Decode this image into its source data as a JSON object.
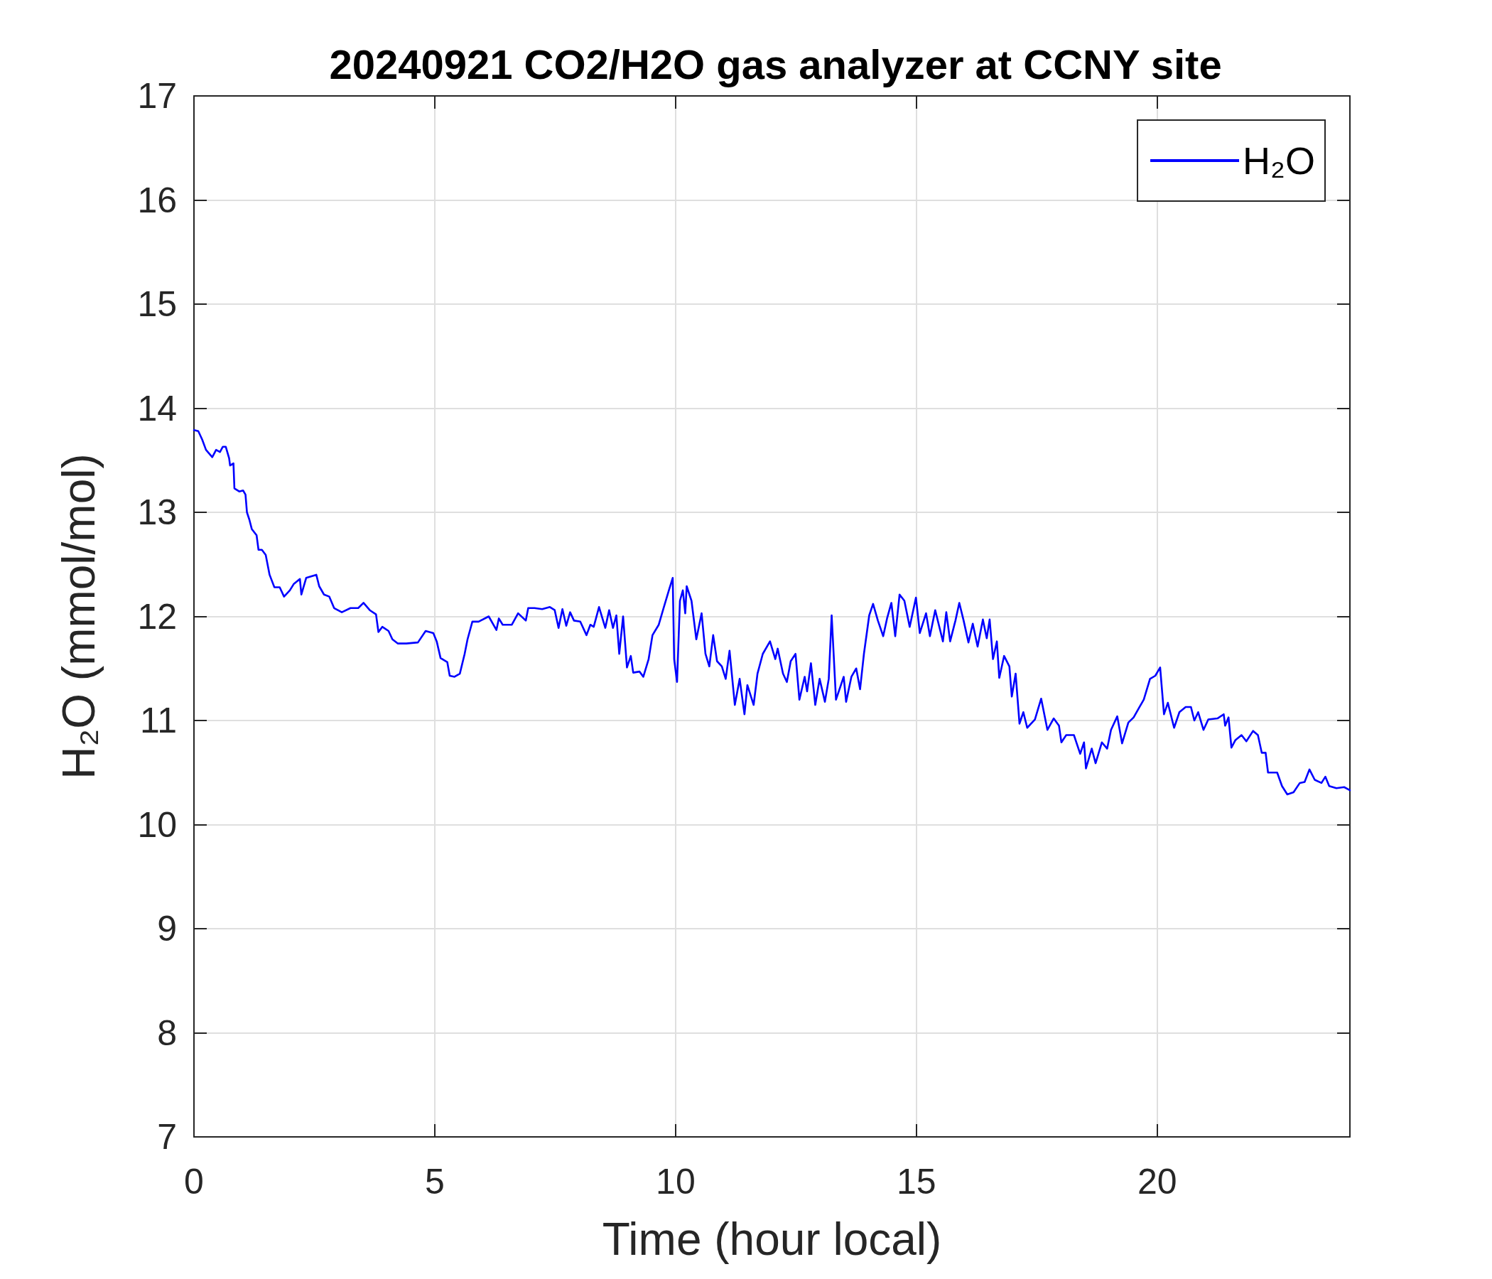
{
  "chart_data": {
    "type": "line",
    "title": "20240921 CO2/H2O gas analyzer at CCNY site",
    "xlabel": "Time (hour local)",
    "ylabel": "H₂O (mmol/mol)",
    "x": [
      0,
      0.09,
      0.17,
      0.25,
      0.38,
      0.46,
      0.54,
      0.6,
      0.66,
      0.73,
      0.75,
      0.82,
      0.84,
      0.94,
      1.02,
      1.07,
      1.1,
      1.15,
      1.2,
      1.3,
      1.34,
      1.41,
      1.49,
      1.57,
      1.67,
      1.78,
      1.87,
      1.99,
      2.07,
      2.2,
      2.23,
      2.33,
      2.54,
      2.6,
      2.7,
      2.81,
      2.91,
      3.07,
      3.25,
      3.41,
      3.52,
      3.65,
      3.78,
      3.83,
      3.91,
      4.04,
      4.12,
      4.23,
      4.41,
      4.65,
      4.81,
      4.97,
      5.04,
      5.12,
      5.26,
      5.31,
      5.41,
      5.52,
      5.62,
      5.68,
      5.78,
      5.91,
      6.12,
      6.28,
      6.33,
      6.41,
      6.6,
      6.73,
      6.89,
      6.94,
      7.07,
      7.23,
      7.39,
      7.49,
      7.57,
      7.65,
      7.73,
      7.81,
      7.89,
      8.02,
      8.15,
      8.23,
      8.3,
      8.41,
      8.54,
      8.62,
      8.7,
      8.77,
      8.83,
      8.91,
      8.99,
      9.07,
      9.12,
      9.25,
      9.33,
      9.44,
      9.52,
      9.65,
      9.75,
      9.86,
      9.94,
      9.97,
      10.03,
      10.09,
      10.15,
      10.2,
      10.23,
      10.33,
      10.43,
      10.54,
      10.62,
      10.7,
      10.78,
      10.86,
      10.96,
      11.04,
      11.12,
      11.23,
      11.33,
      11.43,
      11.49,
      11.62,
      11.7,
      11.81,
      11.96,
      12.07,
      12.12,
      12.23,
      12.31,
      12.39,
      12.49,
      12.57,
      12.68,
      12.73,
      12.81,
      12.9,
      12.99,
      13.1,
      13.18,
      13.24,
      13.33,
      13.49,
      13.54,
      13.65,
      13.75,
      13.83,
      13.91,
      14.02,
      14.1,
      14.2,
      14.31,
      14.39,
      14.48,
      14.56,
      14.65,
      14.75,
      14.86,
      14.99,
      15.07,
      15.2,
      15.28,
      15.39,
      15.55,
      15.62,
      15.7,
      15.81,
      15.89,
      15.98,
      16.08,
      16.17,
      16.27,
      16.38,
      16.46,
      16.52,
      16.59,
      16.67,
      16.72,
      16.82,
      16.93,
      16.98,
      17.06,
      17.14,
      17.22,
      17.3,
      17.46,
      17.59,
      17.72,
      17.85,
      17.96,
      18.01,
      18.11,
      18.27,
      18.4,
      18.48,
      18.52,
      18.64,
      18.72,
      18.85,
      18.96,
      19.04,
      19.17,
      19.27,
      19.4,
      19.51,
      19.62,
      19.72,
      19.85,
      19.96,
      20.06,
      20.14,
      20.22,
      20.35,
      20.46,
      20.59,
      20.7,
      20.77,
      20.85,
      20.96,
      21.06,
      21.25,
      21.38,
      21.41,
      21.48,
      21.54,
      21.62,
      21.75,
      21.85,
      21.99,
      22.09,
      22.17,
      22.25,
      22.3,
      22.49,
      22.59,
      22.7,
      22.83,
      22.96,
      23.06,
      23.16,
      23.27,
      23.41,
      23.49,
      23.57,
      23.72,
      23.88,
      24
    ],
    "series": [
      {
        "name": "H₂O",
        "color": "#0000ff",
        "values": [
          13.79,
          13.78,
          13.7,
          13.6,
          13.53,
          13.6,
          13.58,
          13.63,
          13.63,
          13.52,
          13.45,
          13.47,
          13.23,
          13.2,
          13.21,
          13.17,
          13.0,
          12.93,
          12.84,
          12.78,
          12.64,
          12.64,
          12.59,
          12.4,
          12.28,
          12.28,
          12.19,
          12.25,
          12.31,
          12.36,
          12.21,
          12.37,
          12.4,
          12.29,
          12.21,
          12.19,
          12.08,
          12.04,
          12.08,
          12.08,
          12.13,
          12.06,
          12.02,
          11.85,
          11.9,
          11.86,
          11.78,
          11.74,
          11.74,
          11.75,
          11.86,
          11.84,
          11.76,
          11.6,
          11.56,
          11.43,
          11.42,
          11.45,
          11.64,
          11.78,
          11.95,
          11.95,
          12.0,
          11.87,
          11.98,
          11.92,
          11.92,
          12.03,
          11.96,
          12.08,
          12.08,
          12.07,
          12.09,
          12.06,
          11.89,
          12.07,
          11.91,
          12.04,
          11.96,
          11.95,
          11.82,
          11.92,
          11.9,
          12.09,
          11.89,
          12.06,
          11.89,
          12.01,
          11.64,
          12.0,
          11.51,
          11.62,
          11.46,
          11.47,
          11.42,
          11.59,
          11.82,
          11.92,
          12.08,
          12.25,
          12.37,
          11.59,
          11.37,
          12.15,
          12.25,
          12.03,
          12.29,
          12.15,
          11.78,
          12.03,
          11.64,
          11.52,
          11.82,
          11.57,
          11.52,
          11.4,
          11.67,
          11.15,
          11.4,
          11.06,
          11.34,
          11.15,
          11.45,
          11.64,
          11.76,
          11.59,
          11.69,
          11.45,
          11.37,
          11.57,
          11.64,
          11.2,
          11.42,
          11.28,
          11.55,
          11.15,
          11.4,
          11.18,
          11.4,
          12.01,
          11.2,
          11.42,
          11.18,
          11.42,
          11.5,
          11.3,
          11.64,
          12.01,
          12.12,
          11.96,
          11.81,
          11.98,
          12.13,
          11.81,
          12.21,
          12.15,
          11.9,
          12.18,
          11.84,
          12.03,
          11.81,
          12.06,
          11.76,
          12.04,
          11.76,
          11.96,
          12.13,
          11.96,
          11.75,
          11.93,
          11.71,
          11.97,
          11.79,
          11.97,
          11.59,
          11.76,
          11.41,
          11.62,
          11.52,
          11.23,
          11.45,
          10.97,
          11.08,
          10.93,
          11.01,
          11.21,
          10.91,
          11.02,
          10.95,
          10.79,
          10.86,
          10.86,
          10.68,
          10.79,
          10.54,
          10.73,
          10.59,
          10.79,
          10.73,
          10.91,
          11.04,
          10.78,
          10.98,
          11.03,
          11.12,
          11.2,
          11.4,
          11.43,
          11.51,
          11.06,
          11.17,
          10.93,
          11.08,
          11.13,
          11.13,
          11.0,
          11.08,
          10.91,
          11.01,
          11.02,
          11.06,
          10.95,
          11.03,
          10.74,
          10.81,
          10.86,
          10.8,
          10.9,
          10.86,
          10.69,
          10.69,
          10.5,
          10.5,
          10.37,
          10.29,
          10.31,
          10.4,
          10.41,
          10.53,
          10.43,
          10.4,
          10.46,
          10.37,
          10.35,
          10.36,
          10.33
        ]
      }
    ],
    "xlim": [
      0,
      24
    ],
    "xticks": [
      0,
      5,
      10,
      15,
      20
    ],
    "ylim": [
      7,
      17
    ],
    "yticks": [
      7,
      8,
      9,
      10,
      11,
      12,
      13,
      14,
      15,
      16,
      17
    ],
    "grid": true,
    "legend": "top right",
    "line_style": "solid"
  }
}
